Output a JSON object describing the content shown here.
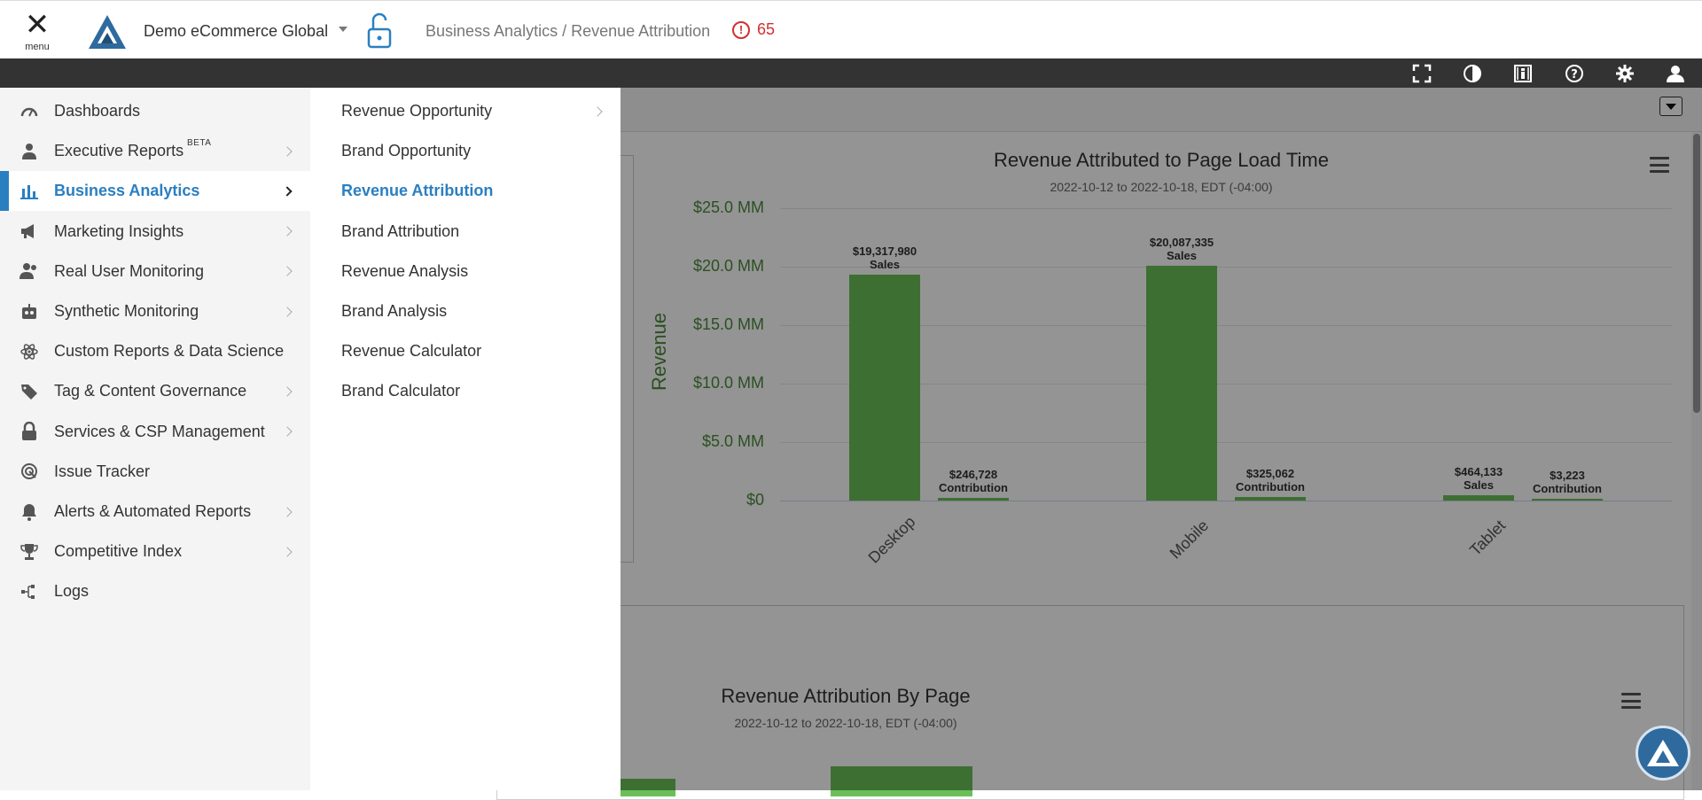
{
  "header": {
    "menu_label": "menu",
    "org_name": "Demo eCommerce Global",
    "breadcrumb": "Business Analytics / Revenue Attribution",
    "alert_count": "65"
  },
  "sidebar": {
    "items": [
      {
        "label": "Dashboards",
        "icon": "gauge-icon",
        "has_submenu": false
      },
      {
        "label": "Executive Reports",
        "badge": "BETA",
        "icon": "executive-icon",
        "has_submenu": true
      },
      {
        "label": "Business Analytics",
        "icon": "bar-chart-icon",
        "has_submenu": true,
        "active": true
      },
      {
        "label": "Marketing Insights",
        "icon": "megaphone-icon",
        "has_submenu": true
      },
      {
        "label": "Real User Monitoring",
        "icon": "users-icon",
        "has_submenu": true
      },
      {
        "label": "Synthetic Monitoring",
        "icon": "robot-icon",
        "has_submenu": true
      },
      {
        "label": "Custom Reports & Data Science",
        "icon": "atom-icon",
        "has_submenu": false
      },
      {
        "label": "Tag & Content Governance",
        "icon": "tags-icon",
        "has_submenu": true
      },
      {
        "label": "Services & CSP Management",
        "icon": "lock-icon",
        "has_submenu": true
      },
      {
        "label": "Issue Tracker",
        "icon": "radar-icon",
        "has_submenu": false
      },
      {
        "label": "Alerts & Automated Reports",
        "icon": "bell-icon",
        "has_submenu": true
      },
      {
        "label": "Competitive Index",
        "icon": "trophy-icon",
        "has_submenu": true
      },
      {
        "label": "Logs",
        "icon": "logs-icon",
        "has_submenu": false
      }
    ]
  },
  "submenu": {
    "items": [
      {
        "label": "Revenue Opportunity",
        "has_submenu": true
      },
      {
        "label": "Brand Opportunity"
      },
      {
        "label": "Revenue Attribution",
        "active": true
      },
      {
        "label": "Brand Attribution"
      },
      {
        "label": "Revenue Analysis"
      },
      {
        "label": "Brand Analysis"
      },
      {
        "label": "Revenue Calculator"
      },
      {
        "label": "Brand Calculator"
      }
    ]
  },
  "colors": {
    "accent": "#2a7fc1",
    "bar_green": "#6abf59",
    "axis_green": "#4a8a3a",
    "alert_red": "#d32f2f",
    "toolbar": "#333333"
  },
  "chart_data": [
    {
      "type": "bar",
      "title": "Revenue Attributed to Page Load Time",
      "subtitle": "2022-10-12 to 2022-10-18, EDT (-04:00)",
      "ylabel": "Revenue",
      "xlabel": "",
      "ylim": [
        0,
        25000000
      ],
      "yticks": [
        "$0",
        "$5.0 MM",
        "$10.0 MM",
        "$15.0 MM",
        "$20.0 MM",
        "$25.0 MM"
      ],
      "categories": [
        "Desktop",
        "Mobile",
        "Tablet"
      ],
      "series": [
        {
          "name": "Sales",
          "values": [
            19317980,
            20087335,
            464133
          ],
          "labels": [
            "$19,317,980",
            "$20,087,335",
            "$464,133"
          ]
        },
        {
          "name": "Contribution",
          "values": [
            246728,
            325062,
            3223
          ],
          "labels": [
            "$246,728",
            "$325,062",
            "$3,223"
          ]
        }
      ]
    },
    {
      "type": "bar",
      "title": "Revenue Attribution By Page",
      "subtitle": "2022-10-12 to 2022-10-18, EDT (-04:00)"
    }
  ]
}
